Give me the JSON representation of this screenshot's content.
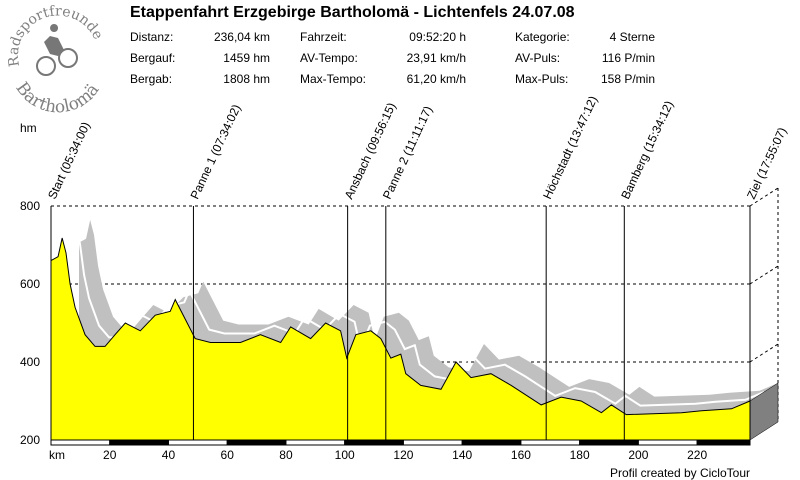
{
  "header": {
    "title": "Etappenfahrt Erzgebirge Bartholomä - Lichtenfels 24.07.08",
    "logo_text": "Radsportfreunde Bartholomä",
    "stats": [
      {
        "label": "Distanz:",
        "value": "236,04 km"
      },
      {
        "label": "Bergauf:",
        "value": "1459 hm"
      },
      {
        "label": "Bergab:",
        "value": "1808 hm"
      },
      {
        "label": "Fahrzeit:",
        "value": "09:52:20 h"
      },
      {
        "label": "AV-Tempo:",
        "value": "23,91 km/h"
      },
      {
        "label": "Max-Tempo:",
        "value": "61,20 km/h"
      },
      {
        "label": "Kategorie:",
        "value": "4 Sterne"
      },
      {
        "label": "AV-Puls:",
        "value": "116 P/min"
      },
      {
        "label": "Max-Puls:",
        "value": "158 P/min"
      }
    ]
  },
  "footer": "Profil created by CicloTour",
  "chart_data": {
    "type": "area",
    "title": "Etappenfahrt Erzgebirge Bartholomä - Lichtenfels 24.07.08",
    "xlabel": "km",
    "ylabel": "hm",
    "xlim": [
      0,
      238
    ],
    "ylim": [
      200,
      800
    ],
    "xticks": [
      20,
      40,
      60,
      80,
      100,
      120,
      140,
      160,
      180,
      200,
      220
    ],
    "yticks": [
      200,
      400,
      600,
      800
    ],
    "grid": true,
    "colors": {
      "fill": "#ffff00",
      "shadow": "#c0c0c0",
      "side": "#808080"
    },
    "x": [
      0,
      2.4,
      3.8,
      5.1,
      6.5,
      8.2,
      11.6,
      15,
      18.4,
      21.8,
      25.3,
      30.4,
      35.5,
      40.6,
      42.3,
      45.7,
      49.1,
      54.3,
      64.5,
      71.3,
      78.2,
      81.6,
      88.4,
      93.5,
      98.6,
      100.7,
      103.8,
      108.9,
      112.3,
      115.7,
      119.1,
      120.8,
      125.9,
      132.8,
      137.9,
      143,
      149.8,
      156.7,
      166.9,
      173.7,
      180.5,
      187.4,
      190.8,
      195.9,
      214.7,
      221.5,
      231.7,
      238
    ],
    "y": [
      660,
      670,
      718,
      680,
      600,
      540,
      470,
      440,
      440,
      470,
      500,
      480,
      520,
      530,
      560,
      510,
      460,
      450,
      450,
      470,
      450,
      490,
      460,
      500,
      480,
      410,
      470,
      480,
      460,
      410,
      420,
      370,
      340,
      330,
      400,
      360,
      370,
      340,
      290,
      310,
      300,
      270,
      290,
      265,
      270,
      275,
      280,
      300
    ],
    "markers": [
      {
        "km": 0,
        "label": "Start (05:34:00)"
      },
      {
        "km": 48.5,
        "label": "Panne 1 (07:34:02)"
      },
      {
        "km": 101,
        "label": "Ansbach (09:56:15)"
      },
      {
        "km": 114,
        "label": "Panne 2 (11:11:17)"
      },
      {
        "km": 168.6,
        "label": "Höchstadt (13:47:12)"
      },
      {
        "km": 195.2,
        "label": "Bamberg (15:34:12)"
      },
      {
        "km": 238,
        "label": "Ziel (17:55:07)"
      }
    ]
  }
}
